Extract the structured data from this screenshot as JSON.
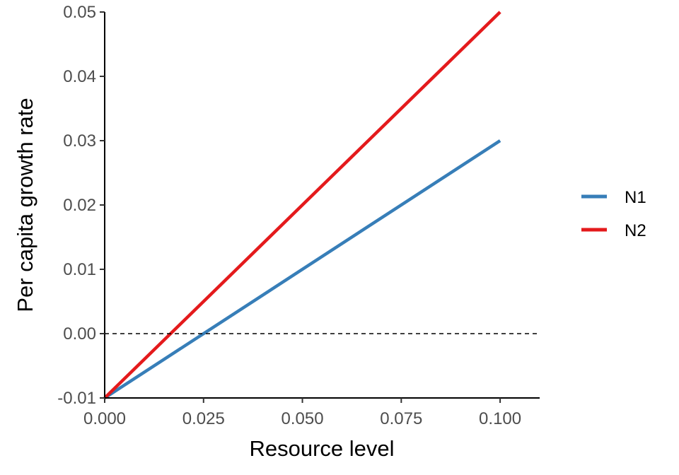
{
  "chart_data": {
    "type": "line",
    "title": "",
    "xlabel": "Resource level",
    "ylabel": "Per capita growth rate",
    "xlim": [
      0,
      0.11
    ],
    "ylim": [
      -0.01,
      0.05
    ],
    "x_ticks": [
      0,
      0.025,
      0.05,
      0.075,
      0.1
    ],
    "x_tick_labels": [
      "0.000",
      "0.025",
      "0.050",
      "0.075",
      "0.100"
    ],
    "y_ticks": [
      -0.01,
      0,
      0.01,
      0.02,
      0.03,
      0.04,
      0.05
    ],
    "y_tick_labels": [
      "-0.01",
      "0.00",
      "0.01",
      "0.02",
      "0.03",
      "0.04",
      "0.05"
    ],
    "grid": false,
    "reference_line": {
      "y": 0,
      "style": "dashed",
      "color": "#000000"
    },
    "legend_position": "right",
    "series": [
      {
        "name": "N1",
        "color": "#377eb8",
        "x": [
          0,
          0.025,
          0.05,
          0.075,
          0.1
        ],
        "y": [
          -0.01,
          0,
          0.01,
          0.02,
          0.03
        ]
      },
      {
        "name": "N2",
        "color": "#e41a1c",
        "x": [
          0,
          0.025,
          0.05,
          0.075,
          0.1
        ],
        "y": [
          -0.01,
          0.005,
          0.02,
          0.035,
          0.05
        ]
      }
    ]
  }
}
